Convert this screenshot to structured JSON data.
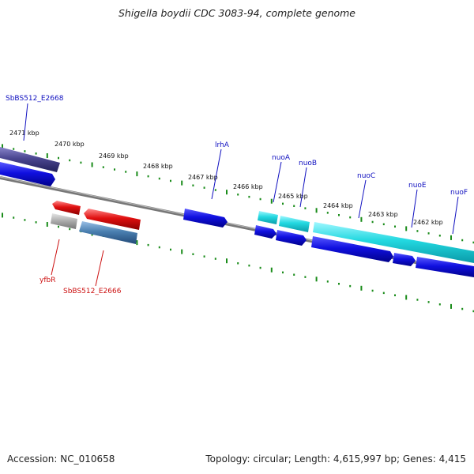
{
  "title": "Shigella boydii CDC 3083-94, complete genome",
  "footer": {
    "accession": "Accession: NC_010658",
    "summary": "Topology: circular; Length: 4,615,997 bp; Genes: 4,415"
  },
  "colors": {
    "backbone": "#777777",
    "tick": "#1a8c1a",
    "forward_gene": "#1010e0",
    "rna_gene": "#22d8e0",
    "reverse_gene": "#e01010",
    "pseudogene": "#aaaaaa",
    "steel_gene": "#4a7fb0",
    "purple_gene": "#4a4690",
    "forward_label": "#1010c0",
    "reverse_label": "#cc1010"
  },
  "scale": {
    "unit": "kbp",
    "labels": [
      "2471 kbp",
      "2470 kbp",
      "2469 kbp",
      "2468 kbp",
      "2467 kbp",
      "2466 kbp",
      "2465 kbp",
      "2464 kbp",
      "2463 kbp",
      "2462 kbp"
    ]
  },
  "genes": {
    "forward": [
      "SbBS512_E2668",
      "lrhA",
      "nuoA",
      "nuoB",
      "nuoC",
      "nuoE",
      "nuoF"
    ],
    "reverse": [
      "yfbR",
      "SbBS512_E2666"
    ]
  }
}
